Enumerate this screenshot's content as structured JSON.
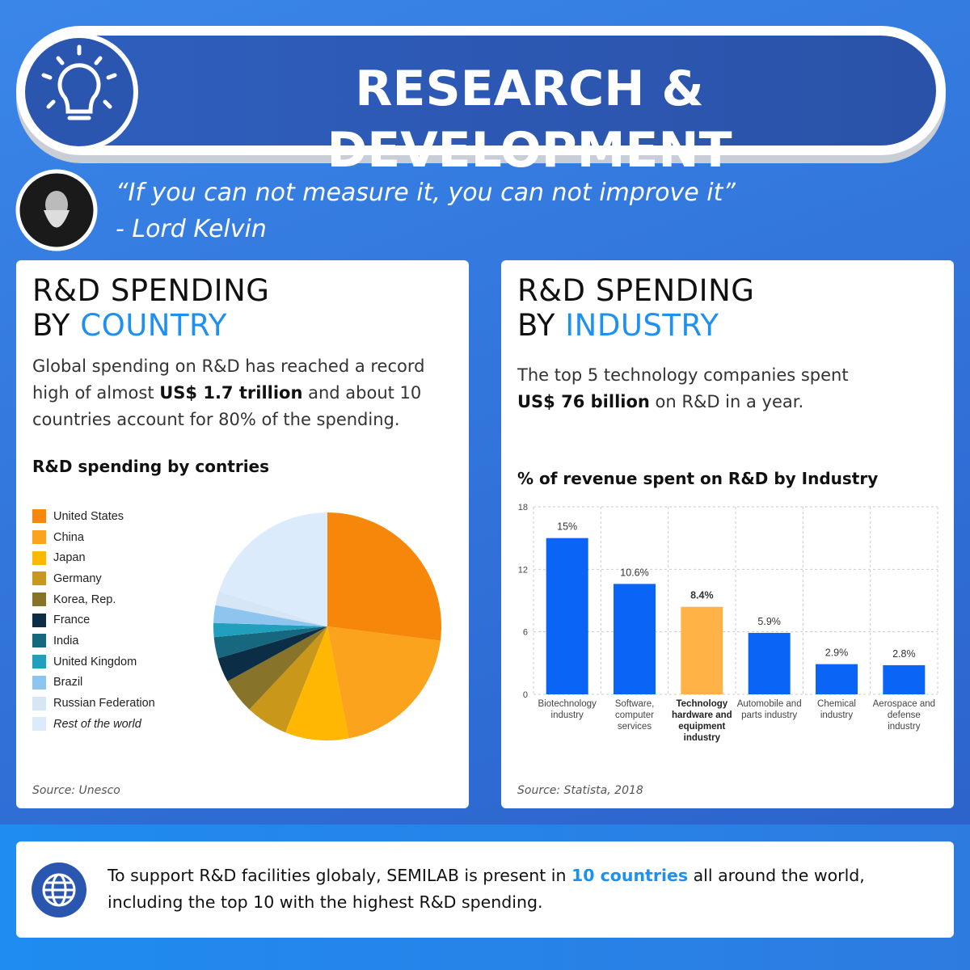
{
  "header": {
    "title": "RESEARCH & DEVELOPMENT"
  },
  "quote": {
    "text": "“If you can not measure it, you can not improve it”",
    "author": "- Lord Kelvin"
  },
  "country_card": {
    "heading": {
      "line1": "R&D SPENDING",
      "line2": "BY",
      "accent": "COUNTRY"
    },
    "body": [
      "Global spending on R&D has reached a record high of almost ",
      "US$ 1.7 trillion",
      " and about 10 countries account for 80% of the spending."
    ],
    "source": "Source: Unesco"
  },
  "industry_card": {
    "heading": {
      "line1": "R&D SPENDING",
      "line2": "BY",
      "accent": "INDUSTRY"
    },
    "body": [
      "The top 5 technology companies spent ",
      "US$ 76 billion",
      " on R&D in a year."
    ],
    "source": "Source: Statista, 2018"
  },
  "footer": {
    "text": [
      "To support R&D facilities globaly, SEMILAB is present in ",
      "10 countries",
      " all around the world, including the top 10 with the highest R&D spending."
    ]
  },
  "chart_data": [
    {
      "type": "pie",
      "title": "R&D spending by contries",
      "categories": [
        "United States",
        "China",
        "Japan",
        "Germany",
        "Korea, Rep.",
        "France",
        "India",
        "United Kingdom",
        "Brazil",
        "Russian Federation",
        "Rest of the world"
      ],
      "values": [
        27,
        20,
        9,
        6,
        5,
        3.5,
        3,
        2,
        2.5,
        2,
        20
      ],
      "colors": [
        "#f7870a",
        "#fba31c",
        "#ffb703",
        "#c9971a",
        "#87742a",
        "#0b2d45",
        "#17677f",
        "#21a0be",
        "#8ec5ee",
        "#d6e6f7",
        "#dcebfb"
      ]
    },
    {
      "type": "bar",
      "title": "% of revenue spent on R&D by Industry",
      "categories": [
        "Biotechnology industry",
        "Software, computer services",
        "Technology hardware and equipment industry",
        "Automobile and parts industry",
        "Chemical industry",
        "Aerospace and defense industry"
      ],
      "values": [
        15,
        10.6,
        8.4,
        5.9,
        2.9,
        2.8
      ],
      "value_labels": [
        "15%",
        "10.6%",
        "8.4%",
        "5.9%",
        "2.9%",
        "2.8%"
      ],
      "colors": [
        "#0a64f5",
        "#0a64f5",
        "#ffb347",
        "#0a64f5",
        "#0a64f5",
        "#0a64f5"
      ],
      "ylim": [
        0,
        18
      ],
      "yticks": [
        0,
        6,
        12,
        18
      ],
      "grid": true
    }
  ]
}
